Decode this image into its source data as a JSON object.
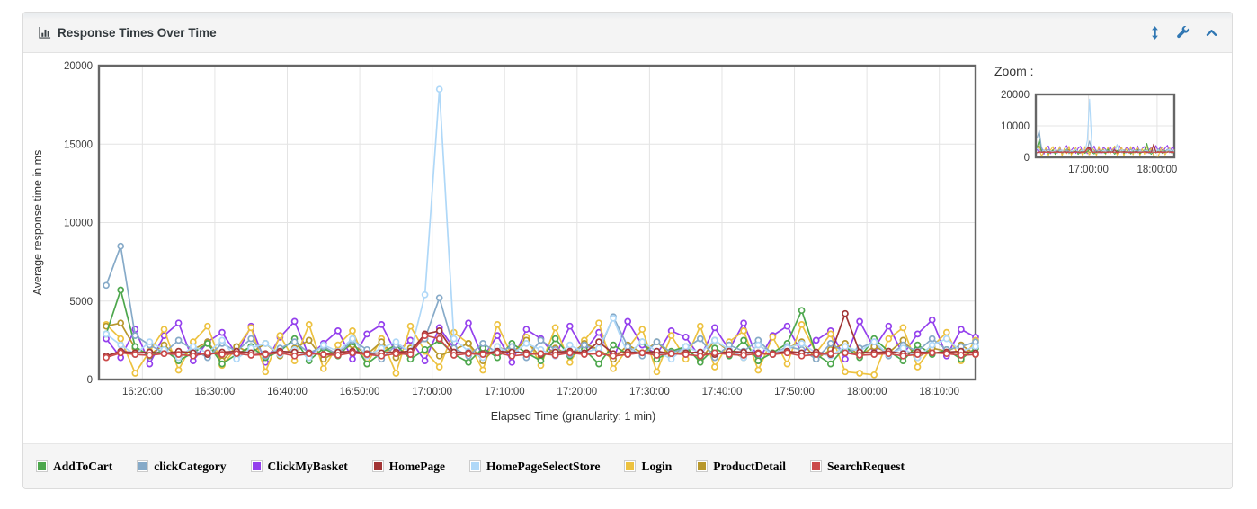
{
  "panel": {
    "title": "Response Times Over Time",
    "accent_color": "#3077b3",
    "header_icons": [
      {
        "name": "resize-vertical-icon"
      },
      {
        "name": "settings-wrench-icon"
      },
      {
        "name": "collapse-chevron-up-icon"
      }
    ]
  },
  "zoom_panel": {
    "label": "Zoom :",
    "y_ticks": [
      0,
      10000,
      20000
    ],
    "x_ticks": [
      {
        "m": 1020,
        "label": "17:00:00"
      },
      {
        "m": 1080,
        "label": "18:00:00"
      }
    ]
  },
  "chart_data": {
    "type": "line",
    "title": "Response Times Over Time",
    "xlabel": "Elapsed Time (granularity: 1 min)",
    "ylabel": "Average response time in ms",
    "ylim": [
      0,
      20000
    ],
    "y_ticks": [
      0,
      5000,
      10000,
      15000,
      20000
    ],
    "x_range_min": [
      974,
      1095
    ],
    "x_start_min": 975,
    "x_step_min": 2,
    "grid": true,
    "legend_position": "bottom",
    "x_ticks": [
      {
        "m": 980,
        "label": "16:20:00"
      },
      {
        "m": 990,
        "label": "16:30:00"
      },
      {
        "m": 1000,
        "label": "16:40:00"
      },
      {
        "m": 1010,
        "label": "16:50:00"
      },
      {
        "m": 1020,
        "label": "17:00:00"
      },
      {
        "m": 1030,
        "label": "17:10:00"
      },
      {
        "m": 1040,
        "label": "17:20:00"
      },
      {
        "m": 1050,
        "label": "17:30:00"
      },
      {
        "m": 1060,
        "label": "17:40:00"
      },
      {
        "m": 1070,
        "label": "17:50:00"
      },
      {
        "m": 1080,
        "label": "18:00:00"
      },
      {
        "m": 1090,
        "label": "18:10:00"
      }
    ],
    "draw_order": [
      2,
      5,
      6,
      0,
      1,
      4,
      3,
      7
    ],
    "series": [
      {
        "name": "AddToCart",
        "color": "#4da74d",
        "values": [
          2900,
          5700,
          2100,
          1500,
          1900,
          1200,
          1700,
          2300,
          1000,
          1600,
          2100,
          1400,
          1800,
          2600,
          1200,
          2000,
          1500,
          2400,
          1000,
          1700,
          2200,
          1300,
          1900,
          2500,
          1600,
          1100,
          2000,
          1400,
          2300,
          1700,
          1200,
          2600,
          1500,
          1900,
          1000,
          2200,
          1600,
          2400,
          1300,
          1800,
          2100,
          1100,
          2000,
          1500,
          2500,
          1200,
          1700,
          2300,
          4400,
          1600,
          1000,
          2100,
          1400,
          2600,
          1800,
          1200,
          2200,
          1600,
          1900,
          1300,
          2000
        ]
      },
      {
        "name": "clickCategory",
        "color": "#86aac8",
        "values": [
          6000,
          8500,
          2800,
          2200,
          1700,
          2500,
          1900,
          1400,
          2300,
          1800,
          2600,
          1500,
          2000,
          2400,
          1700,
          2100,
          1600,
          2500,
          1900,
          1300,
          2200,
          1800,
          2600,
          5200,
          2000,
          1500,
          2300,
          1700,
          2100,
          1400,
          2500,
          1900,
          1600,
          2200,
          1800,
          4000,
          2100,
          1500,
          2400,
          1700,
          2000,
          2600,
          1400,
          2200,
          1800,
          2500,
          1600,
          2100,
          1900,
          1300,
          2300,
          1700,
          2000,
          2400,
          1500,
          2200,
          1800,
          2600,
          1900,
          2100,
          2400
        ]
      },
      {
        "name": "ClickMyBasket",
        "color": "#9440ed",
        "values": [
          2600,
          1400,
          3200,
          1000,
          2800,
          3600,
          1200,
          2400,
          3000,
          1600,
          3400,
          1100,
          2700,
          3700,
          1500,
          2300,
          3100,
          1300,
          2900,
          3500,
          1700,
          2500,
          1200,
          3300,
          2000,
          3600,
          1400,
          2800,
          1100,
          3200,
          2600,
          1500,
          3400,
          1800,
          3000,
          1300,
          3700,
          2200,
          1600,
          3100,
          2700,
          1400,
          3300,
          1900,
          3600,
          1200,
          2800,
          3400,
          1700,
          2500,
          3100,
          1300,
          3700,
          2000,
          3400,
          1600,
          2900,
          3800,
          1500,
          3200,
          2700
        ]
      },
      {
        "name": "HomePage",
        "color": "#a23535",
        "values": [
          1500,
          1800,
          1700,
          1750,
          1650,
          1800,
          1700,
          1600,
          1750,
          1800,
          1700,
          1650,
          1800,
          1750,
          1700,
          1600,
          1750,
          1800,
          1650,
          1700,
          1750,
          1800,
          2900,
          3100,
          1750,
          1700,
          1650,
          1800,
          1750,
          1700,
          1600,
          1750,
          1800,
          1700,
          2400,
          1650,
          1750,
          1700,
          1800,
          1650,
          1700,
          1750,
          1600,
          1800,
          1750,
          1700,
          1650,
          1800,
          1700,
          1750,
          1600,
          4200,
          1750,
          1700,
          1800,
          1650,
          1750,
          1700,
          1750,
          1800,
          1700
        ]
      },
      {
        "name": "HomePageSelectStore",
        "color": "#afd8f8",
        "values": [
          2900,
          2200,
          1600,
          2400,
          1900,
          1400,
          2100,
          1700,
          2500,
          1300,
          2000,
          2300,
          1600,
          1900,
          1400,
          2200,
          1800,
          2600,
          1500,
          2000,
          2400,
          1700,
          5400,
          18500,
          2600,
          1800,
          1400,
          2100,
          1600,
          2300,
          1900,
          1500,
          2200,
          1700,
          2000,
          3900,
          1600,
          2400,
          1800,
          1300,
          2100,
          1700,
          2500,
          1900,
          1400,
          2200,
          1600,
          2000,
          2300,
          1700,
          1500,
          2100,
          1800,
          2400,
          1600,
          2000,
          1400,
          2200,
          2600,
          1800,
          2100
        ]
      },
      {
        "name": "Login",
        "color": "#edc240",
        "values": [
          3500,
          2600,
          400,
          1800,
          3200,
          600,
          2400,
          3400,
          900,
          2000,
          3300,
          500,
          2800,
          1200,
          3500,
          700,
          2200,
          3100,
          1000,
          2600,
          400,
          3400,
          1800,
          800,
          3000,
          2300,
          600,
          3500,
          1500,
          2700,
          900,
          3300,
          1100,
          2500,
          3600,
          700,
          2000,
          3200,
          500,
          2800,
          1300,
          3400,
          800,
          2400,
          3100,
          600,
          2700,
          1000,
          3500,
          1700,
          2900,
          500,
          400,
          300,
          2600,
          3300,
          800,
          2100,
          3000,
          1200,
          2500
        ]
      },
      {
        "name": "ProductDetail",
        "color": "#b8982c",
        "values": [
          3400,
          3600,
          2000,
          1600,
          2200,
          1400,
          1900,
          2400,
          1200,
          2100,
          1700,
          2300,
          1500,
          2000,
          2500,
          1300,
          1800,
          2200,
          1600,
          2400,
          1400,
          2000,
          2600,
          1500,
          1900,
          2300,
          1200,
          2100,
          1700,
          2500,
          1400,
          2000,
          1600,
          2300,
          1900,
          1300,
          2200,
          1700,
          2400,
          1500,
          2000,
          1200,
          2500,
          1800,
          1400,
          2200,
          1600,
          2000,
          2400,
          1300,
          1900,
          2300,
          1500,
          2100,
          1700,
          2500,
          1400,
          2000,
          1800,
          2200,
          1600
        ]
      },
      {
        "name": "SearchRequest",
        "color": "#cb4b4b",
        "values": [
          1400,
          1700,
          1600,
          1550,
          1650,
          1600,
          1500,
          1700,
          1600,
          1650,
          1550,
          1600,
          1700,
          1500,
          1650,
          1600,
          1550,
          1700,
          1600,
          1500,
          1650,
          1600,
          2800,
          2600,
          1550,
          1650,
          1600,
          1700,
          1500,
          1600,
          1650,
          1550,
          1700,
          1600,
          1650,
          1500,
          1600,
          1700,
          1550,
          1650,
          1600,
          1500,
          1700,
          1600,
          1550,
          1650,
          1600,
          1700,
          1500,
          1600,
          1650,
          1700,
          1550,
          1600,
          1650,
          1500,
          1600,
          1700,
          1650,
          1550,
          1600
        ]
      }
    ]
  }
}
